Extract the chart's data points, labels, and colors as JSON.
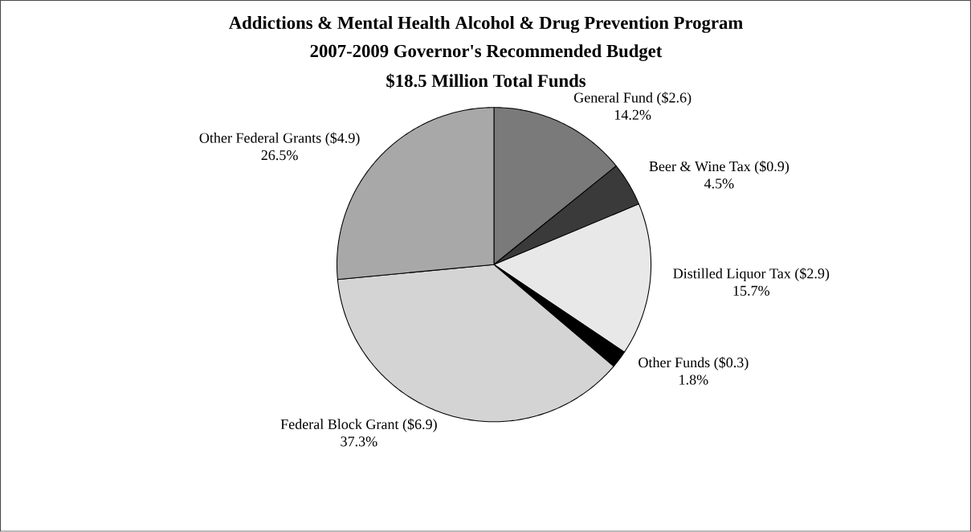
{
  "chart_data": {
    "type": "pie",
    "title": "Addictions & Mental Health Alcohol & Drug Prevention Program",
    "subtitle": "2007-2009 Governor's Recommended Budget",
    "annotations": [
      "$18.5 Million Total Funds"
    ],
    "categories": [
      "General Fund ($2.6)",
      "Beer & Wine Tax ($0.9)",
      "Distilled Liquor Tax ($2.9)",
      "Other Funds ($0.3)",
      "Federal Block Grant ($6.9)",
      "Other Federal Grants ($4.9)"
    ],
    "values": [
      14.2,
      4.5,
      15.7,
      1.8,
      37.3,
      26.5
    ],
    "value_labels": [
      "14.2%",
      "4.5%",
      "15.7%",
      "1.8%",
      "37.3%",
      "26.5%"
    ],
    "colors": [
      "#7a7a7a",
      "#3a3a3a",
      "#e8e8e8",
      "#000000",
      "#d4d4d4",
      "#a8a8a8"
    ]
  }
}
